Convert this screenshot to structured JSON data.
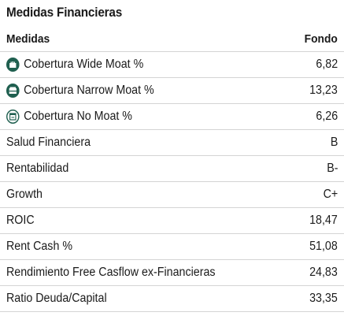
{
  "title": "Medidas Financieras",
  "header": {
    "label": "Medidas",
    "value": "Fondo"
  },
  "colors": {
    "moat_icon": "#1f5f4f"
  },
  "rows": [
    {
      "label": "Cobertura Wide Moat %",
      "value": "6,82",
      "icon": "wide-moat-icon"
    },
    {
      "label": "Cobertura Narrow Moat %",
      "value": "13,23",
      "icon": "narrow-moat-icon"
    },
    {
      "label": "Cobertura No Moat %",
      "value": "6,26",
      "icon": "no-moat-icon"
    },
    {
      "label": "Salud Financiera",
      "value": "B"
    },
    {
      "label": "Rentabilidad",
      "value": "B-"
    },
    {
      "label": "Growth",
      "value": "C+"
    },
    {
      "label": "ROIC",
      "value": "18,47"
    },
    {
      "label": "Rent Cash %",
      "value": "51,08"
    },
    {
      "label": "Rendimiento Free Casflow ex-Financieras",
      "value": "24,83"
    },
    {
      "label": "Ratio Deuda/Capital",
      "value": "33,35"
    }
  ]
}
